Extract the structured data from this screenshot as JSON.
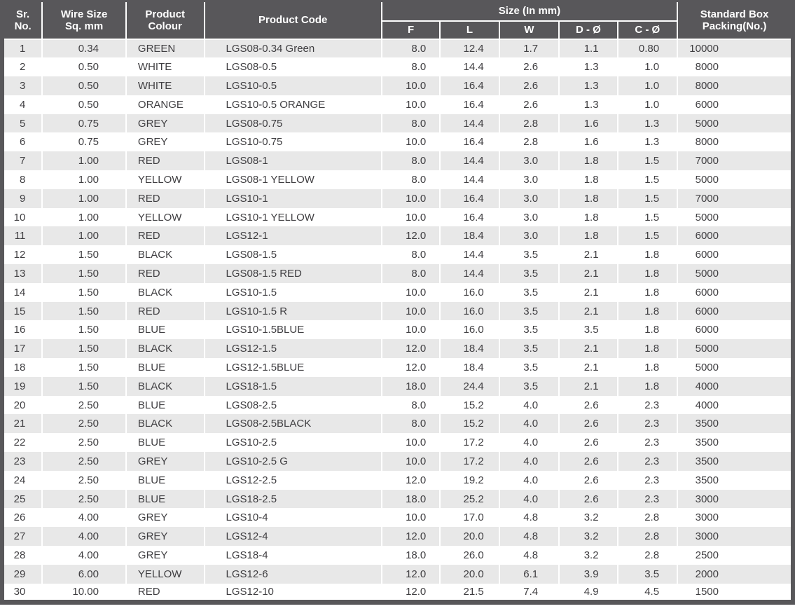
{
  "colors": {
    "header_bg": "#58575a",
    "stripe": "#e8e8e8",
    "text": "#3f3e41",
    "header_text": "#ffffff",
    "divider": "#ffffff"
  },
  "table": {
    "headers": {
      "sr_no": "Sr.\nNo.",
      "wire_size": "Wire Size\nSq. mm",
      "product_colour": "Product\nColour",
      "product_code": "Product Code",
      "size_group": "Size (In mm)",
      "size_cols": [
        "F",
        "L",
        "W",
        "D - Ø",
        "C - Ø"
      ],
      "packing": "Standard Box\nPacking(No.)"
    },
    "rows": [
      [
        "1",
        "0.34",
        "GREEN",
        "LGS08-0.34 Green",
        "8.0",
        "12.4",
        "1.7",
        "1.1",
        "0.80",
        "10000"
      ],
      [
        "2",
        "0.50",
        "WHITE",
        "LGS08-0.5",
        "8.0",
        "14.4",
        "2.6",
        "1.3",
        "1.0",
        "8000"
      ],
      [
        "3",
        "0.50",
        "WHITE",
        "LGS10-0.5",
        "10.0",
        "16.4",
        "2.6",
        "1.3",
        "1.0",
        "8000"
      ],
      [
        "4",
        "0.50",
        "ORANGE",
        "LGS10-0.5 ORANGE",
        "10.0",
        "16.4",
        "2.6",
        "1.3",
        "1.0",
        "6000"
      ],
      [
        "5",
        "0.75",
        "GREY",
        "LGS08-0.75",
        "8.0",
        "14.4",
        "2.8",
        "1.6",
        "1.3",
        "5000"
      ],
      [
        "6",
        "0.75",
        "GREY",
        "LGS10-0.75",
        "10.0",
        "16.4",
        "2.8",
        "1.6",
        "1.3",
        "8000"
      ],
      [
        "7",
        "1.00",
        "RED",
        "LGS08-1",
        "8.0",
        "14.4",
        "3.0",
        "1.8",
        "1.5",
        "7000"
      ],
      [
        "8",
        "1.00",
        "YELLOW",
        "LGS08-1 YELLOW",
        "8.0",
        "14.4",
        "3.0",
        "1.8",
        "1.5",
        "5000"
      ],
      [
        "9",
        "1.00",
        "RED",
        "LGS10-1",
        "10.0",
        "16.4",
        "3.0",
        "1.8",
        "1.5",
        "7000"
      ],
      [
        "10",
        "1.00",
        "YELLOW",
        "LGS10-1 YELLOW",
        "10.0",
        "16.4",
        "3.0",
        "1.8",
        "1.5",
        "5000"
      ],
      [
        "11",
        "1.00",
        "RED",
        "LGS12-1",
        "12.0",
        "18.4",
        "3.0",
        "1.8",
        "1.5",
        "6000"
      ],
      [
        "12",
        "1.50",
        "BLACK",
        "LGS08-1.5",
        "8.0",
        "14.4",
        "3.5",
        "2.1",
        "1.8",
        "6000"
      ],
      [
        "13",
        "1.50",
        "RED",
        "LGS08-1.5 RED",
        "8.0",
        "14.4",
        "3.5",
        "2.1",
        "1.8",
        "5000"
      ],
      [
        "14",
        "1.50",
        "BLACK",
        "LGS10-1.5",
        "10.0",
        "16.0",
        "3.5",
        "2.1",
        "1.8",
        "6000"
      ],
      [
        "15",
        "1.50",
        "RED",
        "LGS10-1.5 R",
        "10.0",
        "16.0",
        "3.5",
        "2.1",
        "1.8",
        "6000"
      ],
      [
        "16",
        "1.50",
        "BLUE",
        "LGS10-1.5BLUE",
        "10.0",
        "16.0",
        "3.5",
        "3.5",
        "1.8",
        "6000"
      ],
      [
        "17",
        "1.50",
        "BLACK",
        "LGS12-1.5",
        "12.0",
        "18.4",
        "3.5",
        "2.1",
        "1.8",
        "5000"
      ],
      [
        "18",
        "1.50",
        "BLUE",
        "LGS12-1.5BLUE",
        "12.0",
        "18.4",
        "3.5",
        "2.1",
        "1.8",
        "5000"
      ],
      [
        "19",
        "1.50",
        "BLACK",
        "LGS18-1.5",
        "18.0",
        "24.4",
        "3.5",
        "2.1",
        "1.8",
        "4000"
      ],
      [
        "20",
        "2.50",
        "BLUE",
        "LGS08-2.5",
        "8.0",
        "15.2",
        "4.0",
        "2.6",
        "2.3",
        "4000"
      ],
      [
        "21",
        "2.50",
        "BLACK",
        "LGS08-2.5BLACK",
        "8.0",
        "15.2",
        "4.0",
        "2.6",
        "2.3",
        "3500"
      ],
      [
        "22",
        "2.50",
        "BLUE",
        "LGS10-2.5",
        "10.0",
        "17.2",
        "4.0",
        "2.6",
        "2.3",
        "3500"
      ],
      [
        "23",
        "2.50",
        "GREY",
        "LGS10-2.5 G",
        "10.0",
        "17.2",
        "4.0",
        "2.6",
        "2.3",
        "3500"
      ],
      [
        "24",
        "2.50",
        "BLUE",
        "LGS12-2.5",
        "12.0",
        "19.2",
        "4.0",
        "2.6",
        "2.3",
        "3500"
      ],
      [
        "25",
        "2.50",
        "BLUE",
        "LGS18-2.5",
        "18.0",
        "25.2",
        "4.0",
        "2.6",
        "2.3",
        "3000"
      ],
      [
        "26",
        "4.00",
        "GREY",
        "LGS10-4",
        "10.0",
        "17.0",
        "4.8",
        "3.2",
        "2.8",
        "3000"
      ],
      [
        "27",
        "4.00",
        "GREY",
        "LGS12-4",
        "12.0",
        "20.0",
        "4.8",
        "3.2",
        "2.8",
        "3000"
      ],
      [
        "28",
        "4.00",
        "GREY",
        "LGS18-4",
        "18.0",
        "26.0",
        "4.8",
        "3.2",
        "2.8",
        "2500"
      ],
      [
        "29",
        "6.00",
        "YELLOW",
        "LGS12-6",
        "12.0",
        "20.0",
        "6.1",
        "3.9",
        "3.5",
        "2000"
      ],
      [
        "30",
        "10.00",
        "RED",
        "LGS12-10",
        "12.0",
        "21.5",
        "7.4",
        "4.9",
        "4.5",
        "1500"
      ]
    ]
  }
}
